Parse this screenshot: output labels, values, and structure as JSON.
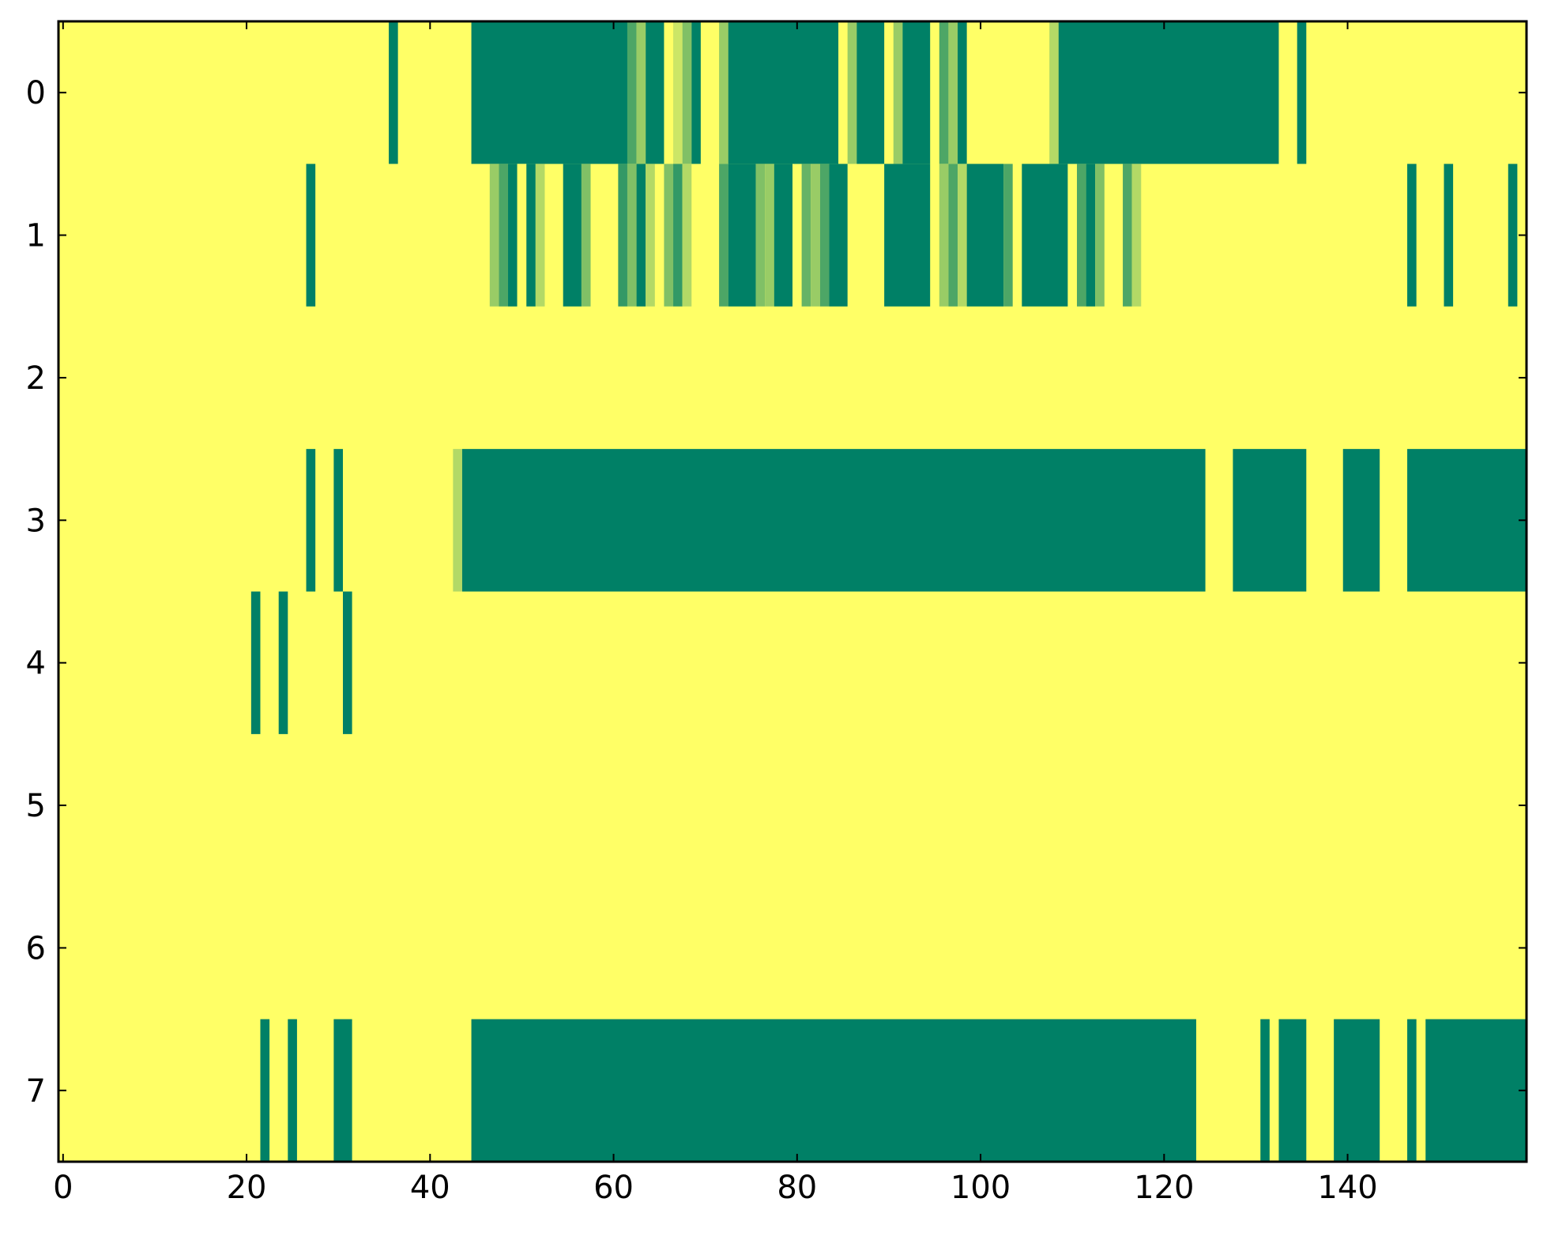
{
  "chart_data": {
    "type": "heatmap",
    "title": "",
    "xlabel": "",
    "ylabel": "",
    "x_range": [
      -0.5,
      159.5
    ],
    "y_rows": [
      0,
      1,
      2,
      3,
      4,
      5,
      6,
      7
    ],
    "x_ticks": [
      "0",
      "20",
      "40",
      "60",
      "80",
      "100",
      "120",
      "140"
    ],
    "y_ticks": [
      "0",
      "1",
      "2",
      "3",
      "4",
      "5",
      "6",
      "7"
    ],
    "colormap": "summer",
    "value_scale": [
      0,
      1
    ],
    "background_value": 1,
    "grid": false,
    "legend": "none",
    "colors": {
      "low": "#008066",
      "high": "#ffff66",
      "mid_dark": "#4da266",
      "mid_light": "#c6e266",
      "axes": "#000000"
    },
    "cells": [
      {
        "row": 0,
        "segments": [
          [
            36,
            37,
            0
          ],
          [
            45,
            62,
            0
          ],
          [
            62,
            63,
            0.3
          ],
          [
            63,
            64,
            0.6
          ],
          [
            64,
            66,
            0
          ],
          [
            67,
            68,
            0.8
          ],
          [
            68,
            69,
            0.5
          ],
          [
            69,
            70,
            0
          ],
          [
            72,
            73,
            0.6
          ],
          [
            73,
            85,
            0
          ],
          [
            86,
            87,
            0.6
          ],
          [
            87,
            90,
            0
          ],
          [
            91,
            92,
            0.6
          ],
          [
            92,
            95,
            0
          ],
          [
            96,
            97,
            0.3
          ],
          [
            97,
            98,
            0.6
          ],
          [
            98,
            99,
            0
          ],
          [
            108,
            109,
            0.7
          ],
          [
            109,
            133,
            0
          ],
          [
            135,
            136,
            0
          ]
        ]
      },
      {
        "row": 1,
        "segments": [
          [
            27,
            28,
            0
          ],
          [
            47,
            48,
            0.6
          ],
          [
            48,
            49,
            0.3
          ],
          [
            49,
            50,
            0
          ],
          [
            50,
            51,
            1
          ],
          [
            51,
            52,
            0
          ],
          [
            52,
            53,
            0.7
          ],
          [
            55,
            57,
            0
          ],
          [
            57,
            58,
            0.5
          ],
          [
            61,
            62,
            0.2
          ],
          [
            62,
            63,
            0.5
          ],
          [
            63,
            64,
            0
          ],
          [
            64,
            65,
            0.7
          ],
          [
            66,
            67,
            0.5
          ],
          [
            67,
            68,
            0.2
          ],
          [
            68,
            69,
            0.7
          ],
          [
            72,
            73,
            0.3
          ],
          [
            73,
            76,
            0
          ],
          [
            76,
            77,
            0.5
          ],
          [
            77,
            78,
            0.6
          ],
          [
            78,
            80,
            0
          ],
          [
            81,
            82,
            0.4
          ],
          [
            82,
            83,
            0.6
          ],
          [
            83,
            84,
            0.3
          ],
          [
            84,
            86,
            0
          ],
          [
            90,
            95,
            0
          ],
          [
            96,
            97,
            0.6
          ],
          [
            97,
            98,
            0.3
          ],
          [
            98,
            99,
            0.7
          ],
          [
            99,
            103,
            0
          ],
          [
            103,
            104,
            0.3
          ],
          [
            105,
            110,
            0
          ],
          [
            111,
            112,
            0.3
          ],
          [
            112,
            113,
            0
          ],
          [
            113,
            114,
            0.5
          ],
          [
            116,
            117,
            0.3
          ],
          [
            117,
            118,
            0.7
          ],
          [
            147,
            148,
            0
          ],
          [
            151,
            152,
            0
          ],
          [
            158,
            159,
            0
          ]
        ]
      },
      {
        "row": 2,
        "segments": []
      },
      {
        "row": 3,
        "segments": [
          [
            27,
            28,
            0
          ],
          [
            30,
            31,
            0
          ],
          [
            43,
            44,
            0.7
          ],
          [
            44,
            125,
            0
          ],
          [
            128,
            136,
            0
          ],
          [
            140,
            144,
            0
          ],
          [
            147,
            160,
            0
          ]
        ]
      },
      {
        "row": 4,
        "segments": [
          [
            21,
            22,
            0
          ],
          [
            24,
            25,
            0
          ],
          [
            31,
            32,
            0
          ]
        ]
      },
      {
        "row": 5,
        "segments": []
      },
      {
        "row": 6,
        "segments": []
      },
      {
        "row": 7,
        "segments": [
          [
            22,
            23,
            0
          ],
          [
            25,
            26,
            0
          ],
          [
            30,
            32,
            0
          ],
          [
            45,
            124,
            0
          ],
          [
            131,
            132,
            0
          ],
          [
            133,
            136,
            0
          ],
          [
            139,
            144,
            0
          ],
          [
            147,
            148,
            0
          ],
          [
            149,
            160,
            0
          ]
        ]
      }
    ]
  }
}
